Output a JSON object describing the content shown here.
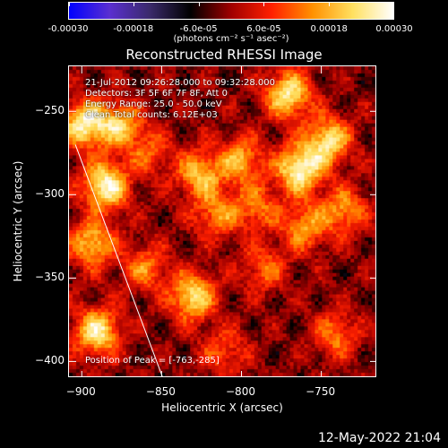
{
  "colorbar": {
    "ticks": [
      "-0.00030",
      "-0.00018",
      "-6.0e-05",
      "6.0e-05",
      "0.00018",
      "0.00030"
    ],
    "tick_values": [
      -0.0003,
      -0.00018,
      -6e-05,
      6e-05,
      0.00018,
      0.0003
    ],
    "range": [
      -0.0003,
      0.0003
    ],
    "unit": "(photons cm⁻² s⁻¹ asec⁻²)",
    "colors": [
      "#0000ff",
      "#5a2fd0",
      "#3a2a6a",
      "#000000",
      "#a00000",
      "#ff2000",
      "#ff9000",
      "#ffe060",
      "#ffffff"
    ]
  },
  "info": {
    "time_range": "21-Jul-2012 09:26:28.000 to 09:32:28.000",
    "detectors": "Detectors: 3F 5F 6F 7F 8F, Att 0",
    "energy": "Energy Range: 25.0 - 50.0 keV",
    "clean": "Clean     Total counts: 6.12E+03",
    "peak": "Position of Peak = [-763,-285]"
  },
  "timestamp": "12-May-2022 21:04",
  "chart_data": {
    "type": "heatmap",
    "title": "Reconstructed RHESSI Image",
    "xlabel": "Heliocentric X (arcsec)",
    "ylabel": "Heliocentric Y (arcsec)",
    "xlim": [
      -908,
      -715
    ],
    "ylim": [
      -410,
      -223
    ],
    "x_ticks": [
      -900,
      -850,
      -800,
      -750
    ],
    "y_ticks": [
      -250,
      -300,
      -350,
      -400
    ],
    "x_tick_labels": [
      "−900",
      "−850",
      "−800",
      "−750"
    ],
    "y_tick_labels": [
      "−250",
      "−300",
      "−350",
      "−400"
    ],
    "peak_position": [
      -763,
      -285
    ],
    "limb_line": [
      [
        -904,
        -270
      ],
      [
        -848,
        -413
      ]
    ],
    "grid": false,
    "bright_sources": [
      {
        "x": -898,
        "y": -258,
        "amp": 0.95
      },
      {
        "x": -885,
        "y": -295,
        "amp": 1.0
      },
      {
        "x": -876,
        "y": -258,
        "amp": 0.7
      },
      {
        "x": -893,
        "y": -330,
        "amp": 0.75
      },
      {
        "x": -890,
        "y": -383,
        "amp": 0.9
      },
      {
        "x": -860,
        "y": -345,
        "amp": 0.5
      },
      {
        "x": -830,
        "y": -362,
        "amp": 0.85
      },
      {
        "x": -815,
        "y": -312,
        "amp": 0.55
      },
      {
        "x": -826,
        "y": -288,
        "amp": 0.7
      },
      {
        "x": -800,
        "y": -280,
        "amp": 0.65
      },
      {
        "x": -790,
        "y": -308,
        "amp": 0.5
      },
      {
        "x": -763,
        "y": -285,
        "amp": 1.0
      },
      {
        "x": -770,
        "y": -240,
        "amp": 0.9
      },
      {
        "x": -745,
        "y": -268,
        "amp": 0.85
      },
      {
        "x": -760,
        "y": -320,
        "amp": 0.6
      },
      {
        "x": -735,
        "y": -310,
        "amp": 0.6
      },
      {
        "x": -785,
        "y": -345,
        "amp": 0.45
      },
      {
        "x": -740,
        "y": -385,
        "amp": 0.5
      },
      {
        "x": -810,
        "y": -395,
        "amp": 0.4
      },
      {
        "x": -858,
        "y": -275,
        "amp": 0.4
      }
    ]
  }
}
